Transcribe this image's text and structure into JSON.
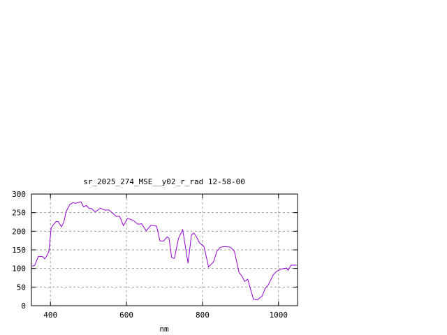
{
  "chart_data": {
    "type": "line",
    "title": "sr_2025_274_MSE__y02_r_rad 12-58-00",
    "xlabel": "nm",
    "ylabel": "",
    "xlim": [
      350,
      1050
    ],
    "ylim": [
      0,
      300
    ],
    "xticks": [
      400,
      600,
      800,
      1000
    ],
    "yticks": [
      0,
      50,
      100,
      150,
      200,
      250,
      300
    ],
    "grid": true,
    "line_color": "#9400d3",
    "series": [
      {
        "x": [
          352,
          359,
          368,
          379,
          385,
          391,
          396,
          402,
          408,
          415,
          420,
          429,
          435,
          441,
          451,
          460,
          466,
          480,
          487,
          495,
          502,
          508,
          518,
          531,
          542,
          554,
          573,
          582,
          592,
          603,
          618,
          630,
          640,
          652,
          664,
          679,
          688,
          698,
          707,
          712,
          719,
          726,
          737,
          748,
          754,
          762,
          771,
          777,
          783,
          792,
          804,
          816,
          829,
          838,
          847,
          859,
          874,
          884,
          896,
          905,
          911,
          919,
          926,
          934,
          945,
          957,
          966,
          972,
          987,
          996,
          1009,
          1021,
          1025,
          1033,
          1048
        ],
        "y": [
          106,
          109,
          132,
          132,
          126,
          135,
          146,
          209,
          218,
          226,
          226,
          212,
          224,
          252,
          272,
          277,
          275,
          279,
          266,
          269,
          261,
          261,
          252,
          262,
          257,
          257,
          240,
          240,
          215,
          235,
          229,
          219,
          220,
          201,
          216,
          214,
          174,
          174,
          185,
          181,
          129,
          127,
          181,
          204,
          165,
          114,
          190,
          195,
          187,
          169,
          159,
          104,
          118,
          146,
          157,
          159,
          157,
          146,
          90,
          77,
          65,
          71,
          46,
          17,
          16,
          26,
          49,
          54,
          84,
          93,
          99,
          101,
          95,
          109,
          109
        ]
      }
    ]
  }
}
